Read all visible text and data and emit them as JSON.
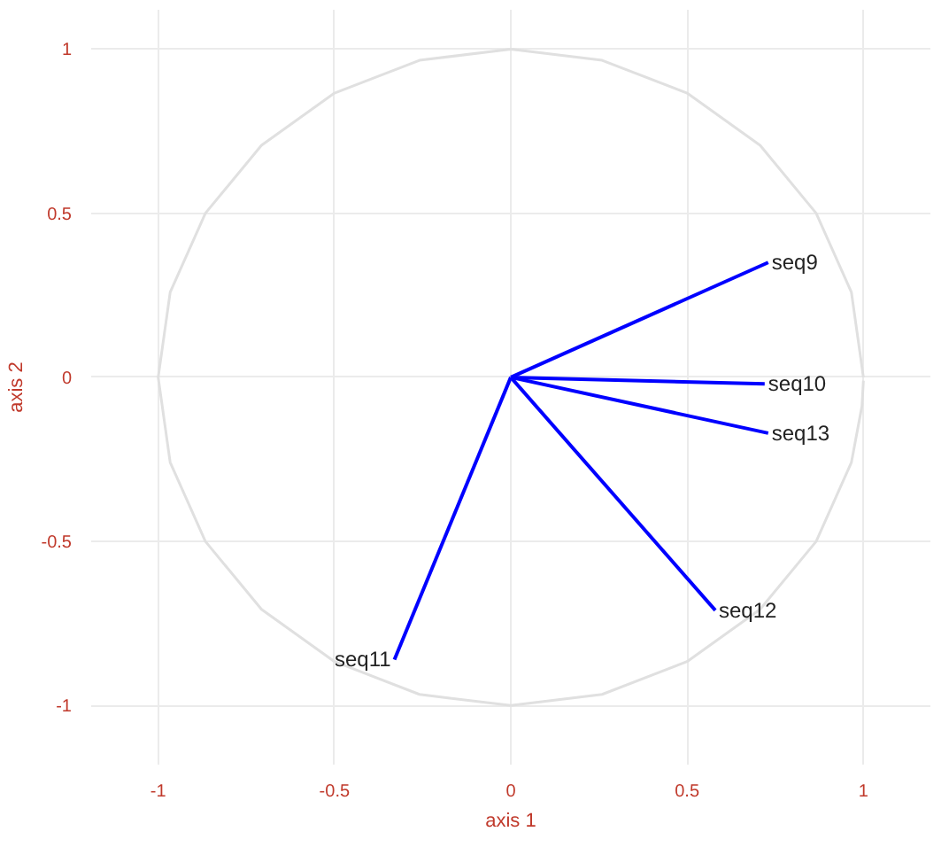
{
  "chart_data": {
    "type": "line",
    "xlabel": "axis 1",
    "ylabel": "axis 2",
    "xlim": [
      -1.19,
      1.19
    ],
    "ylim": [
      -1.18,
      1.12
    ],
    "xticks": [
      -1,
      -0.5,
      0,
      0.5,
      1
    ],
    "yticks": [
      -1,
      -0.5,
      0,
      0.5,
      1
    ],
    "grid": true,
    "marker": "none",
    "line_style": "solid",
    "series": [
      {
        "color": "#e0e0e0",
        "x": [
          1,
          0.966,
          0.866,
          0.707,
          0.5,
          0.259,
          0,
          -0.259,
          -0.5,
          -0.707,
          -0.866,
          -0.966,
          -1,
          -0.966,
          -0.866,
          -0.707,
          -0.5,
          -0.259,
          0,
          0.259,
          0.5,
          0.707,
          0.866,
          0.966,
          0.996,
          1
        ],
        "values": [
          0,
          0.259,
          0.5,
          0.707,
          0.866,
          0.966,
          1,
          0.966,
          0.866,
          0.707,
          0.5,
          0.259,
          0,
          -0.259,
          -0.5,
          -0.707,
          -0.866,
          -0.966,
          -1,
          -0.966,
          -0.866,
          -0.707,
          -0.5,
          -0.259,
          -0.087,
          -0.01
        ]
      },
      {
        "name": "seq9",
        "color": "#0000ff",
        "x": [
          0,
          0.73
        ],
        "values": [
          0,
          0.35
        ]
      },
      {
        "name": "seq10",
        "color": "#0000ff",
        "x": [
          0,
          0.72
        ],
        "values": [
          0,
          -0.02
        ]
      },
      {
        "name": "seq13",
        "color": "#0000ff",
        "x": [
          0,
          0.73
        ],
        "values": [
          0,
          -0.17
        ]
      },
      {
        "name": "seq12",
        "color": "#0000ff",
        "x": [
          0,
          0.58
        ],
        "values": [
          0,
          -0.71
        ]
      },
      {
        "name": "seq11",
        "color": "#0000ff",
        "x": [
          0,
          -0.33
        ],
        "values": [
          0,
          -0.86
        ]
      }
    ]
  }
}
